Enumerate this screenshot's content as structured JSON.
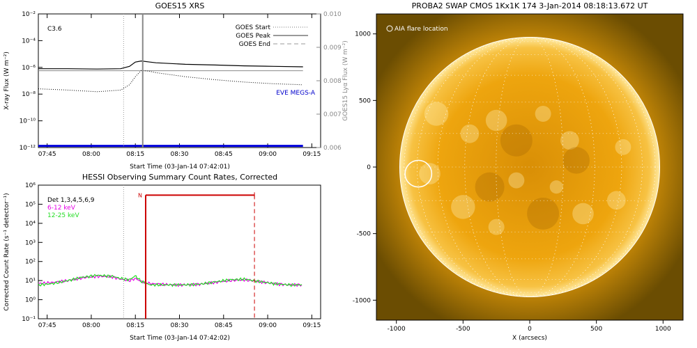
{
  "chart_data": [
    {
      "type": "line",
      "title": "GOES15 XRS",
      "xlabel": "Start Time (03-Jan-14 07:42:01)",
      "ylabel": "X-ray Flux (W m⁻²)",
      "y2label": "GOES15 Lyα Flux (W m⁻²)",
      "yscale": "log",
      "ylim": [
        1e-12,
        0.01
      ],
      "y2lim": [
        0.006,
        0.01
      ],
      "x_tick_labels": [
        "07:45",
        "08:00",
        "08:15",
        "08:30",
        "08:45",
        "09:00",
        "09:15"
      ],
      "y_tick_labels": [
        "10⁻¹²",
        "10⁻¹⁰",
        "10⁻⁸",
        "10⁻⁶",
        "10⁻⁴",
        "10⁻²"
      ],
      "y2_tick_labels": [
        "0.006",
        "0.007",
        "0.008",
        "0.009",
        "0.010"
      ],
      "flare_class": "C3.6",
      "legend": [
        "GOES Start",
        "GOES Peak",
        "GOES End"
      ],
      "legend_position": "top-right",
      "annotation": "EVE MEGS-A",
      "x_minutes": [
        0,
        10,
        20,
        28,
        31,
        33,
        35,
        38,
        40,
        50,
        60,
        70,
        80,
        90
      ],
      "series": [
        {
          "values": [
            8e-07,
            8e-07,
            7.5e-07,
            8e-07,
            1.2e-06,
            2.5e-06,
            3e-06,
            2.5e-06,
            2.2e-06,
            1.7e-06,
            1.5e-06,
            1.3e-06,
            1.2e-06,
            1.1e-06
          ]
        },
        {
          "values": [
            2.5e-08,
            2e-08,
            1.5e-08,
            2e-08,
            5e-08,
            2e-07,
            6e-07,
            5e-07,
            4e-07,
            2e-07,
            1.2e-07,
            8e-08,
            6e-08,
            5e-08
          ]
        }
      ],
      "y2_series": [
        {
          "values": [
            0.0083,
            0.0083,
            0.0083,
            0.0083,
            0.0083,
            0.0083,
            0.0083,
            0.0083,
            0.0083,
            0.0083,
            0.0083,
            0.0083,
            0.0083,
            0.0083
          ]
        },
        {
          "values": [
            0.00605,
            0.00605,
            0.00605,
            0.00605,
            0.00605,
            0.00605,
            0.00605,
            0.00605,
            0.00605,
            0.00605,
            0.00605,
            0.00605,
            0.00605,
            0.00605
          ]
        }
      ],
      "markers_min": {
        "start": 29,
        "peak": 35.5,
        "end": null
      }
    },
    {
      "type": "line",
      "title": "HESSI Observing Summary Count Rates, Corrected",
      "xlabel": "Start Time (03-Jan-14 07:42:02)",
      "ylabel": "Corrected Count Rate (s⁻¹ detector⁻¹)",
      "yscale": "log",
      "ylim": [
        0.1,
        1000000.0
      ],
      "x_tick_labels": [
        "07:45",
        "08:00",
        "08:15",
        "08:30",
        "08:45",
        "09:00",
        "09:15"
      ],
      "y_tick_labels": [
        "10⁻¹",
        "10⁰",
        "10¹",
        "10²",
        "10³",
        "10⁴",
        "10⁵",
        "10⁶"
      ],
      "detectors": "Det 1,3,4,5,6,9",
      "night_flag": "N",
      "night_interval_min": [
        36.5,
        73.5
      ],
      "x_minutes": [
        0,
        5,
        10,
        15,
        20,
        25,
        28,
        31,
        33,
        35,
        38,
        45,
        50,
        55,
        60,
        65,
        70,
        75,
        80,
        85,
        90
      ],
      "series": [
        {
          "name": "6-12 keV",
          "color": "#e600e6",
          "values": [
            7,
            8,
            10,
            14,
            17,
            16,
            12,
            10,
            13,
            9,
            7,
            6,
            6,
            6.5,
            8,
            10,
            11,
            9,
            7,
            6,
            6
          ]
        },
        {
          "name": "12-25 keV",
          "color": "#22dd22",
          "values": [
            6,
            7,
            10,
            15,
            19,
            17,
            13,
            11,
            18,
            9,
            6,
            6,
            6,
            6.5,
            8.5,
            11,
            12,
            9,
            7,
            6,
            6
          ]
        }
      ],
      "markers_min": {
        "start": 29,
        "end": 73.5
      }
    },
    {
      "type": "image",
      "title": "PROBA2 SWAP CMOS 1Kx1K 174   3-Jan-2014 08:18:13.672 UT",
      "xlabel": "X (arcsecs)",
      "xlim": [
        -1150,
        1150
      ],
      "ylim": [
        -1150,
        1150
      ],
      "x_tick_labels": [
        "-1000",
        "-500",
        "0",
        "500",
        "1000"
      ],
      "y_tick_labels": [
        "-1000",
        "-500",
        "0",
        "500",
        "1000"
      ],
      "annotation": "AIA flare location",
      "solar_radius_arcsec": 975,
      "flare_location_arcsec": [
        -835,
        -50
      ],
      "colors": {
        "disk": "#f2a70c",
        "background": "#6b4d02",
        "limb": "#ffffff"
      }
    }
  ]
}
